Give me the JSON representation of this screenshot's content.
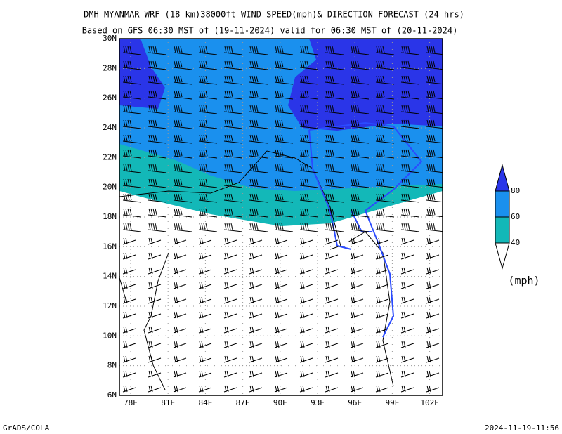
{
  "header": {
    "title": "DMH MYANMAR WRF (18 km)38000ft WIND SPEED(mph)& DIRECTION FORECAST (24 hrs)",
    "subtitle": "Based on GFS 06:30 MST of (19-11-2024) valid for 06:30 MST of (20-11-2024)"
  },
  "map": {
    "lon_labels": [
      "78E",
      "81E",
      "84E",
      "87E",
      "90E",
      "93E",
      "96E",
      "99E",
      "102E"
    ],
    "lat_labels": [
      "30N",
      "28N",
      "26N",
      "24N",
      "22N",
      "20N",
      "18N",
      "16N",
      "14N",
      "12N",
      "10N",
      "8N",
      "6N"
    ]
  },
  "legend": {
    "levels": [
      40,
      60,
      80
    ],
    "colors": [
      "#13b8b8",
      "#1a90ee",
      "#2a35e8"
    ],
    "unit": "(mph)"
  },
  "footer": {
    "left": "GrADS/COLA",
    "right": "2024-11-19-11:56"
  }
}
